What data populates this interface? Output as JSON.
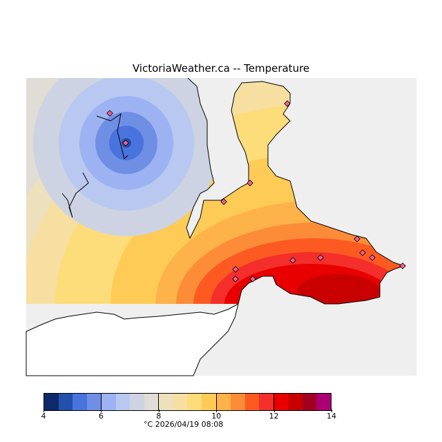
{
  "title": "VictoriaWeather.ca -- Temperature",
  "colorbar": {
    "min": 4,
    "max": 14,
    "step": 0.5,
    "ticks": [
      "4",
      "6",
      "8",
      "10",
      "12",
      "14"
    ],
    "colors": [
      "#0c2a6a",
      "#2350aa",
      "#4a73dd",
      "#6e8fe4",
      "#9db2f2",
      "#b8c8f0",
      "#cdd3e2",
      "#e0dcd6",
      "#ede0bd",
      "#f6dfa0",
      "#fddc7a",
      "#fecb56",
      "#fdb24a",
      "#fd8c38",
      "#fd5a22",
      "#f42e2a",
      "#e80000",
      "#c80000",
      "#a20020",
      "#aa0073"
    ]
  },
  "footer": "°C  2026/04/19 08:08"
}
